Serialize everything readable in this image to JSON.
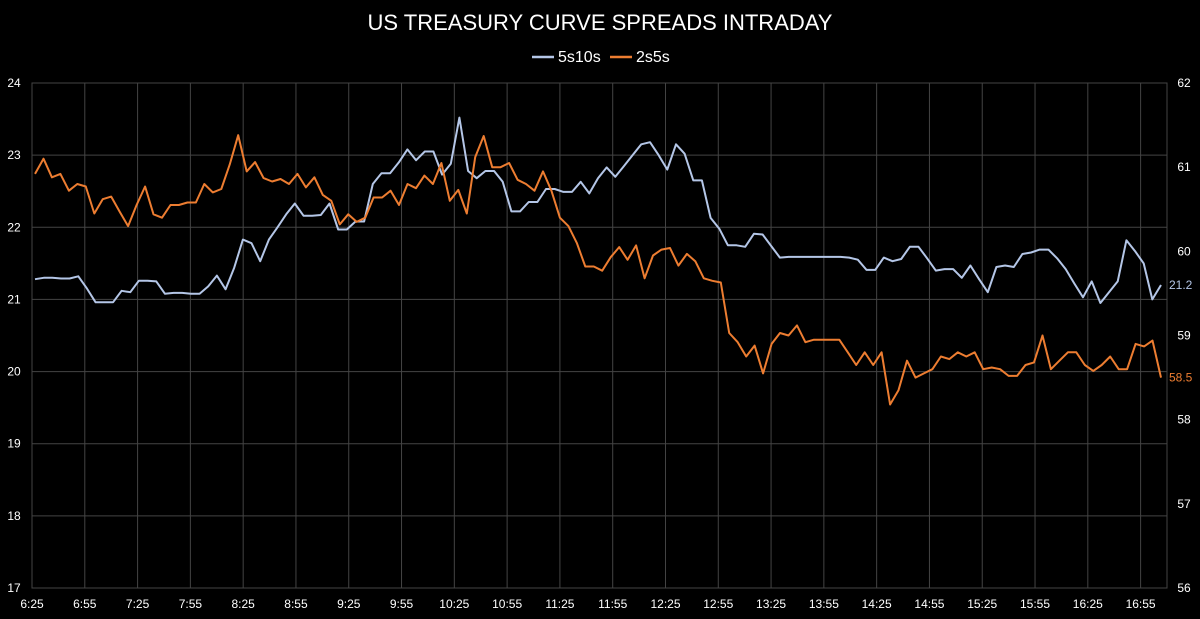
{
  "chart_data": {
    "type": "line",
    "title": "US TREASURY CURVE SPREADS INTRADAY",
    "legend_position": "top-center",
    "grid": true,
    "background": "#000000",
    "grid_color": "#444444",
    "x_ticks": [
      "6:25",
      "6:55",
      "7:25",
      "7:55",
      "8:25",
      "8:55",
      "9:25",
      "9:55",
      "10:25",
      "10:55",
      "11:25",
      "11:55",
      "12:25",
      "12:55",
      "13:25",
      "13:55",
      "14:25",
      "14:55",
      "15:25",
      "15:55",
      "16:25",
      "16:55"
    ],
    "x_range": [
      "6:25",
      "17:10"
    ],
    "y_left": {
      "range": [
        17,
        24
      ],
      "ticks": [
        "17",
        "18",
        "19",
        "20",
        "21",
        "22",
        "23",
        "24"
      ]
    },
    "y_right": {
      "range": [
        56,
        62
      ],
      "ticks": [
        "56",
        "57",
        "58",
        "59",
        "60",
        "61",
        "62"
      ]
    },
    "series": [
      {
        "name": "5s10s",
        "axis": "left",
        "color": "#b4c6e7",
        "last_label": "21.2",
        "values": [
          21.28,
          21.3,
          21.3,
          21.29,
          21.29,
          21.32,
          21.15,
          20.96,
          20.96,
          20.96,
          21.12,
          21.1,
          21.26,
          21.26,
          21.25,
          21.08,
          21.09,
          21.09,
          21.08,
          21.08,
          21.18,
          21.33,
          21.14,
          21.44,
          21.83,
          21.78,
          21.53,
          21.83,
          22.0,
          22.18,
          22.33,
          22.16,
          22.16,
          22.17,
          22.33,
          21.97,
          21.97,
          22.08,
          22.08,
          22.6,
          22.75,
          22.75,
          22.9,
          23.08,
          22.93,
          23.05,
          23.05,
          22.73,
          22.88,
          23.52,
          22.78,
          22.68,
          22.78,
          22.78,
          22.63,
          22.22,
          22.22,
          22.35,
          22.35,
          22.53,
          22.53,
          22.49,
          22.49,
          22.63,
          22.47,
          22.68,
          22.83,
          22.7,
          22.85,
          23.0,
          23.15,
          23.18,
          23.0,
          22.8,
          23.15,
          23.02,
          22.65,
          22.65,
          22.13,
          21.98,
          21.75,
          21.75,
          21.73,
          21.91,
          21.9,
          21.74,
          21.58,
          21.59,
          21.59,
          21.59,
          21.59,
          21.59,
          21.59,
          21.59,
          21.58,
          21.55,
          21.41,
          21.41,
          21.58,
          21.53,
          21.56,
          21.73,
          21.73,
          21.57,
          21.4,
          21.42,
          21.42,
          21.3,
          21.47,
          21.28,
          21.1,
          21.45,
          21.47,
          21.45,
          21.63,
          21.65,
          21.69,
          21.69,
          21.57,
          21.42,
          21.22,
          21.03,
          21.25,
          20.95,
          21.1,
          21.25,
          21.82,
          21.67,
          21.5,
          21.0,
          21.2
        ]
      },
      {
        "name": "2s5s",
        "axis": "right",
        "color": "#ed7d31",
        "last_label": "58.5",
        "values": [
          60.92,
          61.1,
          60.88,
          60.92,
          60.72,
          60.8,
          60.77,
          60.45,
          60.62,
          60.65,
          60.47,
          60.3,
          60.55,
          60.77,
          60.44,
          60.4,
          60.55,
          60.55,
          60.58,
          60.58,
          60.8,
          60.7,
          60.74,
          61.03,
          61.38,
          60.95,
          61.06,
          60.87,
          60.83,
          60.86,
          60.8,
          60.92,
          60.76,
          60.88,
          60.67,
          60.6,
          60.32,
          60.44,
          60.35,
          60.4,
          60.64,
          60.64,
          60.72,
          60.55,
          60.8,
          60.75,
          60.9,
          60.8,
          61.05,
          60.6,
          60.73,
          60.45,
          61.12,
          61.37,
          61.0,
          61.0,
          61.05,
          60.85,
          60.8,
          60.72,
          60.95,
          60.72,
          60.4,
          60.3,
          60.1,
          59.82,
          59.82,
          59.77,
          59.93,
          60.05,
          59.9,
          60.07,
          59.68,
          59.95,
          60.02,
          60.04,
          59.83,
          59.97,
          59.88,
          59.68,
          59.65,
          59.63,
          59.03,
          58.92,
          58.75,
          58.88,
          58.55,
          58.9,
          59.03,
          59.0,
          59.12,
          58.92,
          58.95,
          58.95,
          58.95,
          58.95,
          58.8,
          58.65,
          58.8,
          58.65,
          58.8,
          58.18,
          58.35,
          58.7,
          58.5,
          58.55,
          58.6,
          58.75,
          58.72,
          58.8,
          58.75,
          58.8,
          58.6,
          58.62,
          58.6,
          58.52,
          58.52,
          58.65,
          58.68,
          59.0,
          58.6,
          58.7,
          58.8,
          58.8,
          58.65,
          58.58,
          58.65,
          58.75,
          58.6,
          58.6,
          58.9,
          58.87,
          58.94,
          58.5
        ]
      }
    ]
  }
}
